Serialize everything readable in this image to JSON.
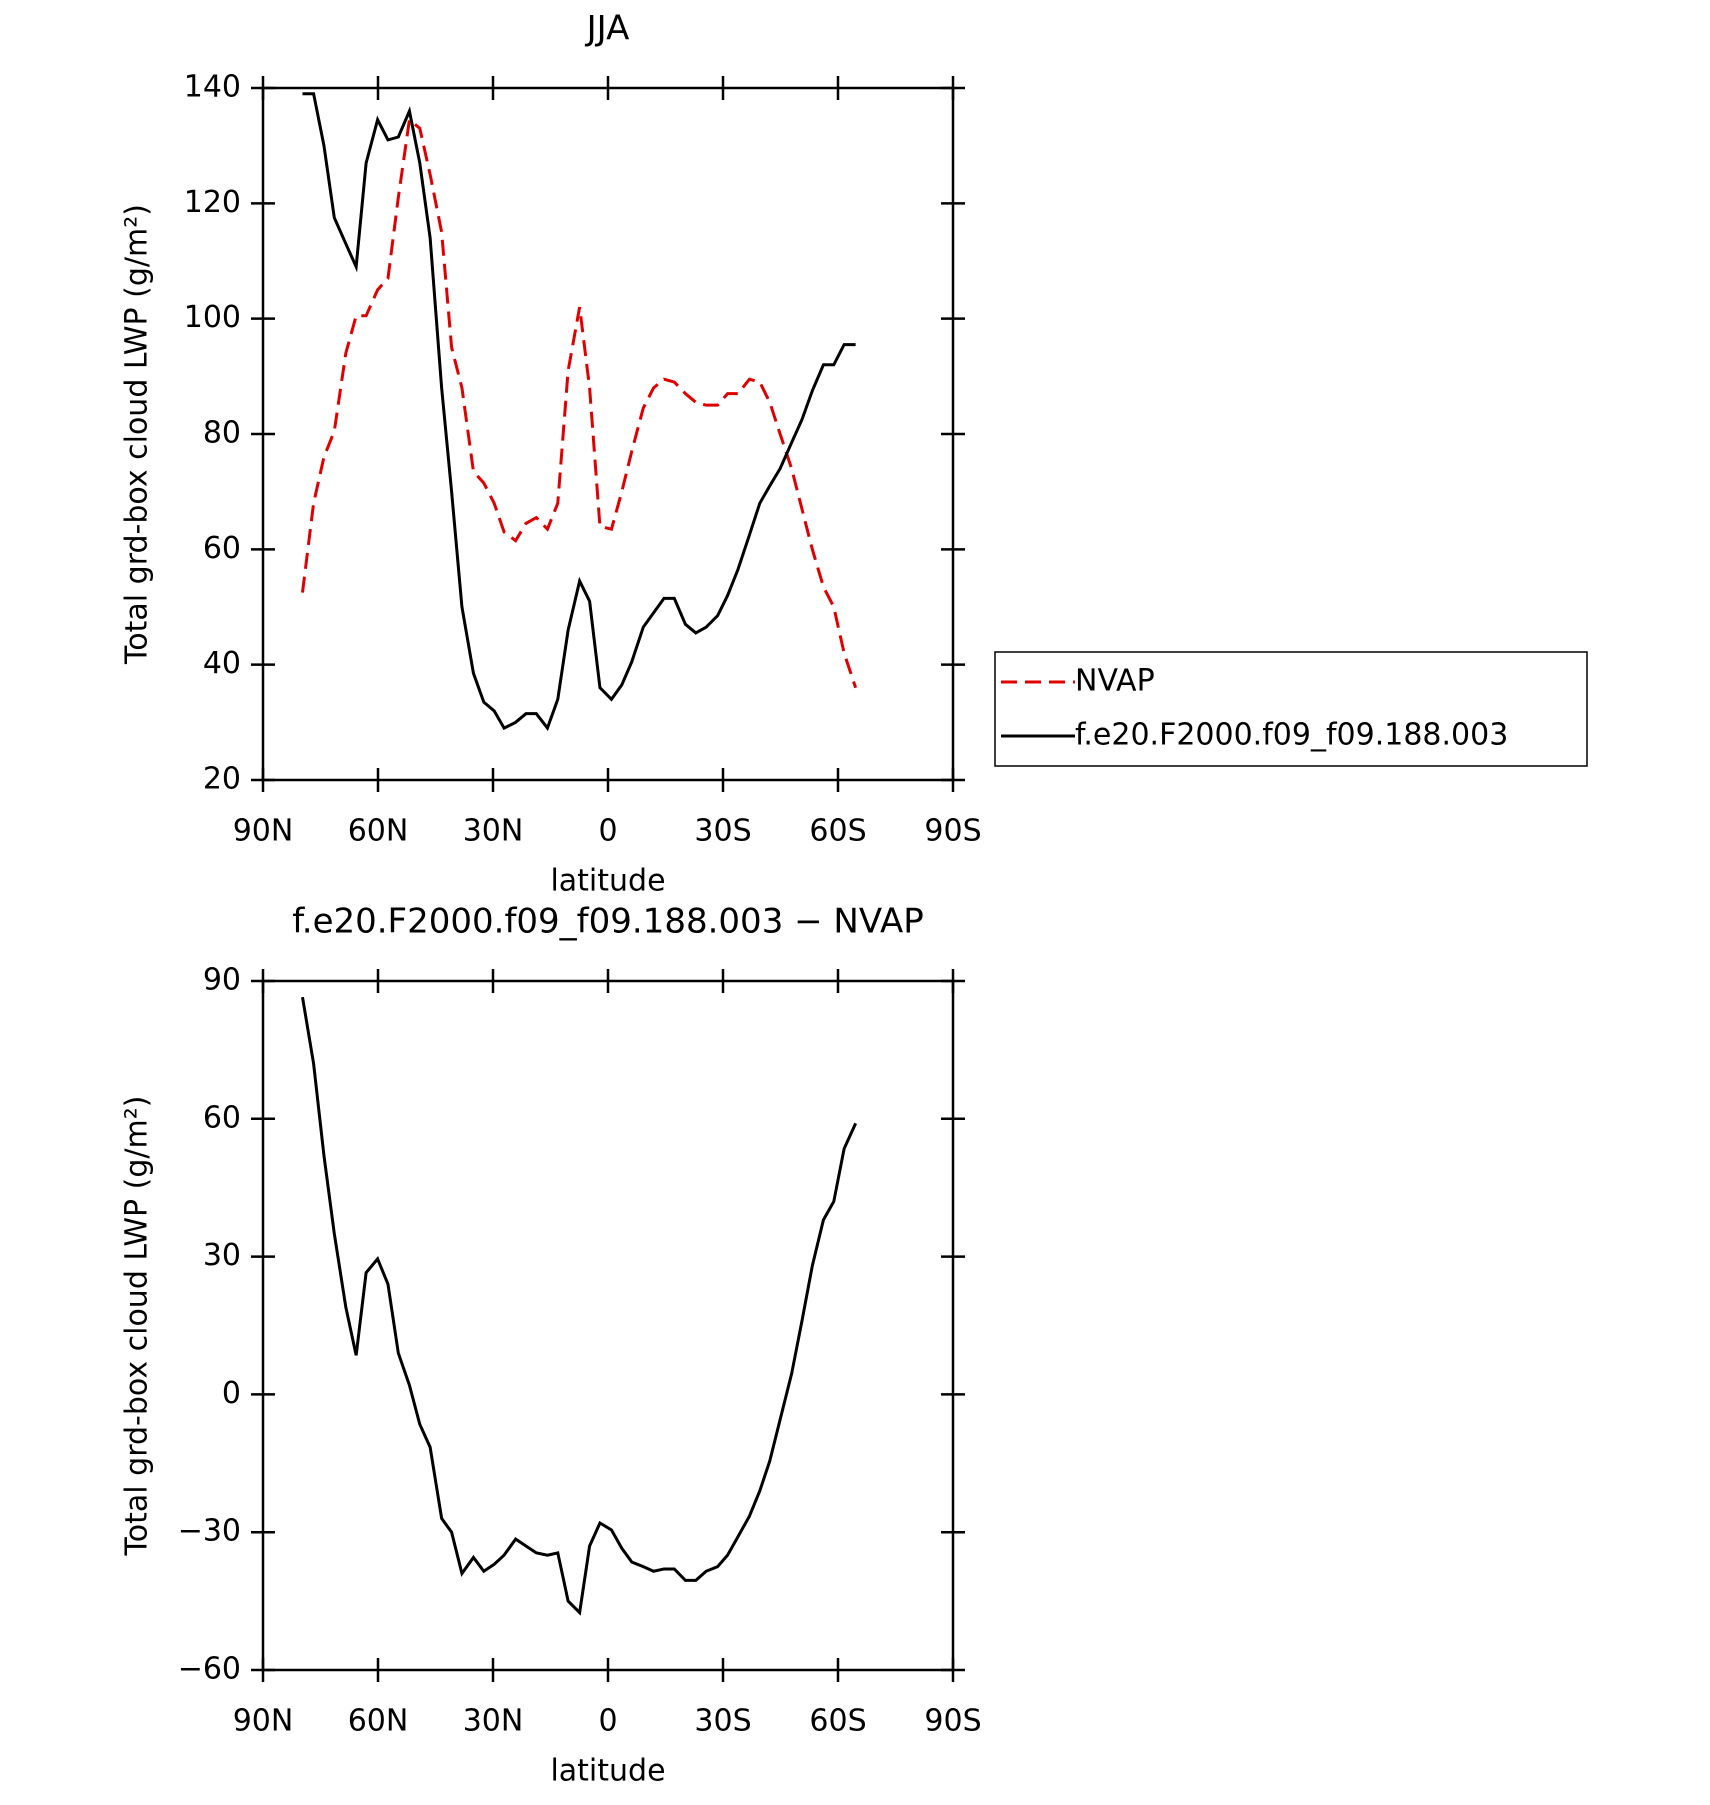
{
  "chart_data": [
    {
      "type": "line",
      "title": "JJA",
      "xlabel": "latitude",
      "ylabel": "Total grd-box cloud LWP (g/m²)",
      "x": [
        79.7,
        76.8,
        74.1,
        71.4,
        68.4,
        65.7,
        63.1,
        60.1,
        57.4,
        54.7,
        51.8,
        49.1,
        46.4,
        43.4,
        40.8,
        38.1,
        35.1,
        32.4,
        29.7,
        27.1,
        24.1,
        21.4,
        18.7,
        15.8,
        13.1,
        10.4,
        7.4,
        4.8,
        2.1,
        -0.9,
        -3.6,
        -6.2,
        -9.2,
        -11.9,
        -14.6,
        -17.3,
        -20.2,
        -22.9,
        -25.6,
        -28.6,
        -31.2,
        -33.9,
        -36.9,
        -39.6,
        -42.2,
        -44.9,
        -47.9,
        -50.6,
        -53.3,
        -56.2,
        -58.9,
        -61.6,
        -64.6
      ],
      "series": [
        {
          "name": "NVAP",
          "color": "#e00000",
          "line_style": "dashed",
          "values": [
            52.5,
            68,
            76,
            80.5,
            94,
            100.5,
            100.5,
            105,
            107,
            121,
            134.5,
            133,
            125,
            115,
            95,
            88,
            73.5,
            71.5,
            68,
            63,
            61.5,
            64.5,
            65.5,
            63.5,
            68,
            91,
            102,
            88,
            64,
            63.5,
            70,
            77,
            84.5,
            88,
            89.5,
            89,
            87,
            85.5,
            85,
            85,
            87,
            87,
            89.5,
            89,
            85.5,
            80,
            74,
            67,
            60,
            53.5,
            50,
            42,
            36
          ]
        },
        {
          "name": "f.e20.F2000.f09_f09.188.003",
          "color": "#000000",
          "line_style": "solid",
          "values": [
            139,
            139,
            130,
            117.5,
            113,
            109,
            127,
            134.5,
            131,
            131.5,
            136,
            127,
            114,
            88,
            70,
            50,
            38.5,
            33.5,
            32,
            29,
            30,
            31.5,
            31.5,
            29,
            34,
            46,
            54.5,
            51,
            36,
            34,
            36.5,
            40.5,
            46.5,
            49,
            51.5,
            51.5,
            47,
            45.5,
            46.5,
            48.5,
            52,
            56.5,
            62.5,
            68,
            71,
            74,
            78.5,
            82.5,
            87.5,
            92,
            92,
            95.5,
            95.5
          ]
        }
      ],
      "xlim": [
        90,
        -90
      ],
      "xticks": [
        {
          "value": 90,
          "label": "90N"
        },
        {
          "value": 60,
          "label": "60N"
        },
        {
          "value": 30,
          "label": "30N"
        },
        0,
        {
          "value": -30,
          "label": "30S"
        },
        {
          "value": -60,
          "label": "60S"
        },
        {
          "value": -90,
          "label": "90S"
        }
      ],
      "ylim": [
        20,
        140
      ],
      "yticks": [
        20,
        40,
        60,
        80,
        100,
        120,
        140
      ],
      "legend": "right"
    },
    {
      "type": "line",
      "title": "f.e20.F2000.f09_f09.188.003 − NVAP",
      "xlabel": "latitude",
      "ylabel": "Total grd-box cloud LWP (g/m²)",
      "x": [
        79.7,
        76.8,
        74.1,
        71.4,
        68.4,
        65.7,
        63.1,
        60.1,
        57.4,
        54.7,
        51.8,
        49.1,
        46.4,
        43.4,
        40.8,
        38.1,
        35.1,
        32.4,
        29.7,
        27.1,
        24.1,
        21.4,
        18.7,
        15.8,
        13.1,
        10.4,
        7.4,
        4.8,
        2.1,
        -0.9,
        -3.6,
        -6.2,
        -9.2,
        -11.9,
        -14.6,
        -17.3,
        -20.2,
        -22.9,
        -25.6,
        -28.6,
        -31.2,
        -33.9,
        -36.9,
        -39.6,
        -42.2,
        -44.9,
        -47.9,
        -50.6,
        -53.3,
        -56.2,
        -58.9,
        -61.6,
        -64.6
      ],
      "series": [
        {
          "color": "#000000",
          "line_style": "solid",
          "values": [
            86.5,
            72,
            52,
            35,
            19,
            8.5,
            26.5,
            29.5,
            24,
            9,
            2,
            -6.5,
            -11.5,
            -27,
            -30,
            -39,
            -35.5,
            -38.5,
            -37,
            -35,
            -31.5,
            -33,
            -34.5,
            -35,
            -34.5,
            -45,
            -47.5,
            -33,
            -28,
            -29.5,
            -33.5,
            -36.5,
            -37.5,
            -38.5,
            -38,
            -38,
            -40.5,
            -40.5,
            -38.5,
            -37.5,
            -35,
            -31,
            -26.5,
            -21,
            -14.5,
            -5.5,
            4.5,
            16,
            28,
            38,
            42,
            53.5,
            59
          ]
        }
      ],
      "xlim": [
        90,
        -90
      ],
      "xticks": [
        {
          "value": 90,
          "label": "90N"
        },
        {
          "value": 60,
          "label": "60N"
        },
        {
          "value": 30,
          "label": "30N"
        },
        0,
        {
          "value": -30,
          "label": "30S"
        },
        {
          "value": -60,
          "label": "60S"
        },
        {
          "value": -90,
          "label": "90S"
        }
      ],
      "ylim": [
        -60,
        90
      ],
      "yticks": [
        {
          "value": -60,
          "label": "−60"
        },
        {
          "value": -30,
          "label": "−30"
        },
        0,
        30,
        60,
        90
      ]
    }
  ]
}
